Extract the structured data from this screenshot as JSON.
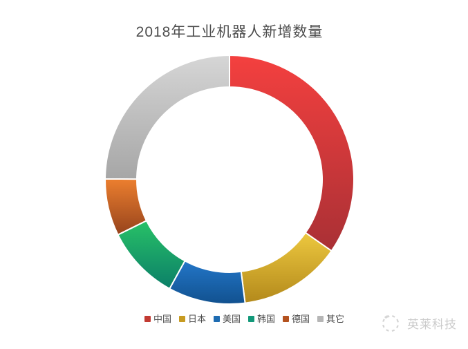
{
  "title": "2018年工业机器人新增数量",
  "watermark": {
    "text": "英莱科技"
  },
  "chart_data": {
    "type": "pie",
    "subtype": "donut",
    "title": "2018年工业机器人新增数量",
    "categories": [
      "中国",
      "日本",
      "美国",
      "韩国",
      "德国",
      "其它"
    ],
    "values": [
      34.7,
      13.3,
      10.0,
      9.7,
      7.4,
      24.9
    ],
    "values_note": "percent of ring, estimated from arc angles; no numeric labels are shown in the image",
    "start_angle_deg": 0,
    "direction": "clockwise",
    "legend_position": "bottom",
    "colors_light": [
      "#f4403f",
      "#edc83f",
      "#2376c8",
      "#28c167",
      "#ec7f2f",
      "#d6d6d6"
    ],
    "colors_dark": [
      "#a93035",
      "#b3891b",
      "#11518f",
      "#0b7f68",
      "#96431c",
      "#a6a6a6"
    ],
    "legend_swatch_colors": [
      "#c23a32",
      "#c79b21",
      "#1e6cb2",
      "#13997a",
      "#b4521f",
      "#b6b6b6"
    ],
    "title_color": "#4d4d4d",
    "legend_text_color": "#4c4c4c",
    "watermark_color": "#cbcbcb",
    "background_color": "#ffffff"
  }
}
